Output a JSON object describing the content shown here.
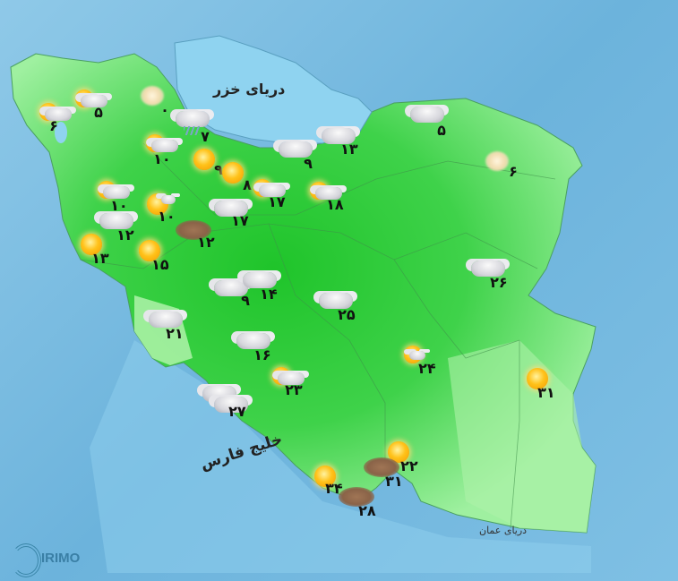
{
  "map": {
    "seas": {
      "caspian": "دریای خزر",
      "persian_gulf": "خلیج فارس",
      "oman": "دریای عمان"
    },
    "logo_text": "IRIMO",
    "colors": {
      "land": "#2fd13a",
      "sea": "#8fd0ee",
      "background": "#7fbfe2"
    },
    "stations": [
      {
        "temp": "۶",
        "condition": "partly-cloudy"
      },
      {
        "temp": "۵",
        "condition": "partly-cloudy"
      },
      {
        "temp": "۰",
        "condition": "hazy-sun"
      },
      {
        "temp": "۷",
        "condition": "rain"
      },
      {
        "temp": "۱۰",
        "condition": "partly-cloudy"
      },
      {
        "temp": "۹",
        "condition": "sunny"
      },
      {
        "temp": "۸",
        "condition": "sunny"
      },
      {
        "temp": "۱۷",
        "condition": "partly-cloudy"
      },
      {
        "temp": "۹",
        "condition": "cloudy"
      },
      {
        "temp": "۱۳",
        "condition": "cloudy"
      },
      {
        "temp": "۱۸",
        "condition": "partly-cloudy"
      },
      {
        "temp": "۱۰",
        "condition": "partly-cloudy"
      },
      {
        "temp": "۱۰",
        "condition": "sunny-cloud"
      },
      {
        "temp": "۱۷",
        "condition": "cloudy"
      },
      {
        "temp": "۱۲",
        "condition": "dust"
      },
      {
        "temp": "۱۲",
        "condition": "cloudy"
      },
      {
        "temp": "۱۳",
        "condition": "sunny-cloud"
      },
      {
        "temp": "۱۵",
        "condition": "sunny-cloud"
      },
      {
        "temp": "۹",
        "condition": "cloudy"
      },
      {
        "temp": "۱۴",
        "condition": "cloudy"
      },
      {
        "temp": "۲۵",
        "condition": "cloudy"
      },
      {
        "temp": "۲۱",
        "condition": "cloudy"
      },
      {
        "temp": "۱۶",
        "condition": "cloudy"
      },
      {
        "temp": "۲۳",
        "condition": "partly-cloudy"
      },
      {
        "temp": "۲۷",
        "condition": "cloudy"
      },
      {
        "temp": "۲۴",
        "condition": "sunny-cloud"
      },
      {
        "temp": "۲۶",
        "condition": "cloudy"
      },
      {
        "temp": "۵",
        "condition": "cloudy"
      },
      {
        "temp": "۶",
        "condition": "hazy-sun"
      },
      {
        "temp": "۳۱",
        "condition": "sunny"
      },
      {
        "temp": "۲۲",
        "condition": "sunny"
      },
      {
        "temp": "۳۱",
        "condition": "dust"
      },
      {
        "temp": "۳۴",
        "condition": "sunny"
      },
      {
        "temp": "۲۸",
        "condition": "dust"
      }
    ]
  }
}
